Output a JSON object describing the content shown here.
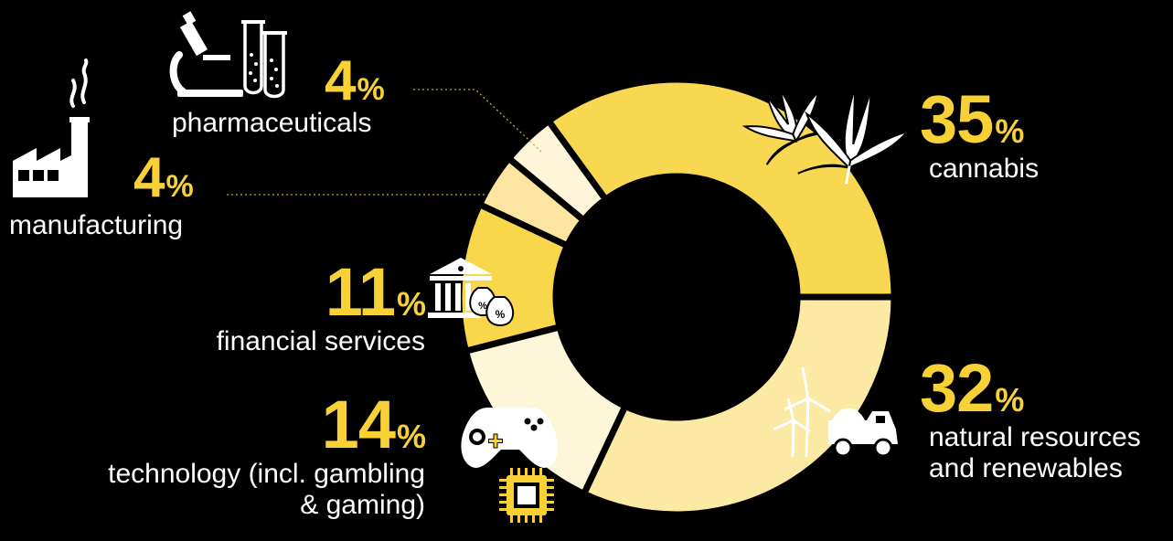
{
  "chart_data": {
    "type": "pie",
    "donut": true,
    "unit_sign": "%",
    "slices": [
      {
        "key": "cannabis",
        "value": 35,
        "label": "cannabis",
        "color": "#f7d850"
      },
      {
        "key": "natural",
        "value": 32,
        "label": "natural resources and renewables",
        "label_lines": [
          "natural resources",
          "and renewables"
        ],
        "color": "#fbe9a4"
      },
      {
        "key": "technology",
        "value": 14,
        "label": "technology (incl. gambling & gaming)",
        "label_lines": [
          "technology (incl. gambling",
          "& gaming)"
        ],
        "color": "#fef6d8"
      },
      {
        "key": "financial",
        "value": 11,
        "label": "financial services",
        "color": "#f8d74a"
      },
      {
        "key": "manufacturing",
        "value": 4,
        "label": "manufacturing",
        "color": "#fce5a0"
      },
      {
        "key": "pharma",
        "value": 4,
        "label": "pharmaceuticals",
        "color": "#fff5db"
      }
    ],
    "legend": "none",
    "grid": false
  },
  "colors": {
    "accent": "#f7d136",
    "background": "#000000",
    "text": "#ffffff",
    "leader": "#c9a93a"
  },
  "icons": {
    "cannabis": "cannabis-leaf-icon",
    "natural": "wind-turbine-and-mining-truck-icon",
    "technology": "game-controller-and-chip-icon",
    "financial": "bank-and-money-bag-icon",
    "manufacturing": "factory-icon",
    "pharma": "microscope-and-test-tube-icon"
  }
}
